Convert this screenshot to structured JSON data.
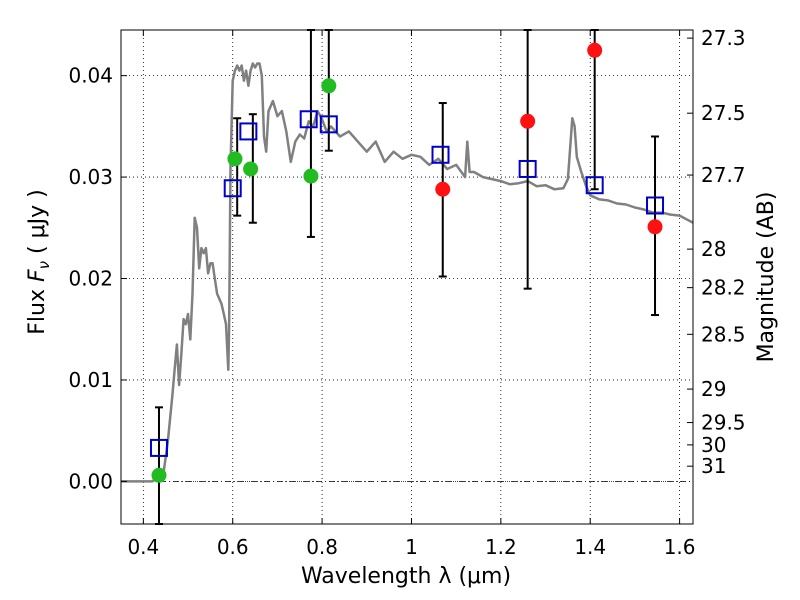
{
  "chart_data": {
    "type": "scatter",
    "title": "",
    "xlabel": "Wavelength  λ (μm)",
    "ylabel_prefix": "Flux  ",
    "ylabel_var": "F",
    "ylabel_sub": "ν",
    "ylabel_suffix": "  ( μJy )",
    "y2label": "Magnitude (AB)",
    "xlim": [
      0.35,
      1.63
    ],
    "ylim": [
      -0.0042,
      0.0445
    ],
    "grid": true,
    "x_ticks": [
      0.4,
      0.6,
      0.8,
      1.0,
      1.2,
      1.4,
      1.6
    ],
    "x_tick_labels": [
      "0.4",
      "0.6",
      "0.8",
      "1",
      "1.2",
      "1.4",
      "1.6"
    ],
    "y_ticks": [
      0.0,
      0.01,
      0.02,
      0.03,
      0.04
    ],
    "y_tick_labels": [
      "0.00",
      "0.01",
      "0.02",
      "0.03",
      "0.04"
    ],
    "y2_ticks": [
      {
        "flux": 0.0437,
        "label": "27.3"
      },
      {
        "flux": 0.0363,
        "label": "27.5"
      },
      {
        "flux": 0.0302,
        "label": "27.7"
      },
      {
        "flux": 0.0229,
        "label": "28"
      },
      {
        "flux": 0.0191,
        "label": "28.2"
      },
      {
        "flux": 0.0145,
        "label": "28.5"
      },
      {
        "flux": 0.0091,
        "label": "29"
      },
      {
        "flux": 0.0058,
        "label": "29.5"
      },
      {
        "flux": 0.0036,
        "label": "30"
      },
      {
        "flux": 0.0015,
        "label": "31"
      }
    ],
    "sed_model": {
      "name": "SED model",
      "color": "#808080",
      "x": [
        0.35,
        0.42,
        0.445,
        0.455,
        0.465,
        0.47,
        0.475,
        0.48,
        0.485,
        0.49,
        0.495,
        0.5,
        0.505,
        0.51,
        0.515,
        0.52,
        0.525,
        0.53,
        0.535,
        0.54,
        0.545,
        0.55,
        0.555,
        0.56,
        0.565,
        0.57,
        0.575,
        0.58,
        0.585,
        0.59,
        0.592,
        0.595,
        0.6,
        0.605,
        0.61,
        0.615,
        0.62,
        0.625,
        0.63,
        0.635,
        0.64,
        0.645,
        0.65,
        0.655,
        0.66,
        0.665,
        0.67,
        0.675,
        0.68,
        0.685,
        0.69,
        0.7,
        0.71,
        0.72,
        0.73,
        0.74,
        0.75,
        0.76,
        0.77,
        0.78,
        0.79,
        0.8,
        0.81,
        0.82,
        0.84,
        0.86,
        0.88,
        0.9,
        0.92,
        0.94,
        0.96,
        0.98,
        1.0,
        1.02,
        1.04,
        1.06,
        1.08,
        1.1,
        1.12,
        1.125,
        1.13,
        1.14,
        1.16,
        1.18,
        1.2,
        1.22,
        1.24,
        1.26,
        1.28,
        1.3,
        1.32,
        1.34,
        1.35,
        1.36,
        1.365,
        1.37,
        1.38,
        1.39,
        1.4,
        1.42,
        1.44,
        1.46,
        1.48,
        1.5,
        1.52,
        1.54,
        1.56,
        1.58,
        1.6,
        1.63
      ],
      "y": [
        0.0,
        0.0,
        0.0008,
        0.004,
        0.0085,
        0.011,
        0.0135,
        0.0095,
        0.0125,
        0.016,
        0.0155,
        0.0165,
        0.014,
        0.0185,
        0.026,
        0.025,
        0.021,
        0.023,
        0.0225,
        0.023,
        0.0205,
        0.0215,
        0.0215,
        0.02,
        0.0185,
        0.018,
        0.0175,
        0.0165,
        0.0155,
        0.011,
        0.015,
        0.031,
        0.0395,
        0.0405,
        0.041,
        0.0405,
        0.041,
        0.0395,
        0.0405,
        0.039,
        0.0405,
        0.0412,
        0.0408,
        0.0412,
        0.0412,
        0.04,
        0.034,
        0.0325,
        0.0365,
        0.037,
        0.0375,
        0.036,
        0.0365,
        0.0345,
        0.0315,
        0.0335,
        0.0342,
        0.0338,
        0.0355,
        0.035,
        0.0365,
        0.0357,
        0.0345,
        0.035,
        0.034,
        0.0345,
        0.0335,
        0.0325,
        0.0335,
        0.0315,
        0.0325,
        0.0318,
        0.0322,
        0.032,
        0.0312,
        0.0318,
        0.0308,
        0.0312,
        0.03,
        0.0335,
        0.0305,
        0.0305,
        0.03,
        0.0298,
        0.0296,
        0.0293,
        0.0294,
        0.0296,
        0.0291,
        0.0292,
        0.0288,
        0.0289,
        0.0298,
        0.0358,
        0.035,
        0.032,
        0.0305,
        0.0292,
        0.0282,
        0.0278,
        0.0277,
        0.0274,
        0.0273,
        0.027,
        0.0268,
        0.0265,
        0.0265,
        0.0263,
        0.0262,
        0.0255
      ]
    },
    "series": [
      {
        "name": "observed (green)",
        "marker": "circle",
        "color": "#22bb22",
        "x": [
          0.435,
          0.605,
          0.64,
          0.775,
          0.815
        ],
        "y": [
          0.0006,
          0.0318,
          0.0308,
          0.0301,
          0.039
        ]
      },
      {
        "name": "observed (red)",
        "marker": "circle",
        "color": "#ff1111",
        "x": [
          1.07,
          1.26,
          1.41,
          1.545
        ],
        "y": [
          0.0288,
          0.0355,
          0.0425,
          0.0251
        ]
      },
      {
        "name": "model photometry",
        "marker": "square-open",
        "color": "#0000cc",
        "x": [
          0.435,
          0.6,
          0.635,
          0.77,
          0.815,
          1.065,
          1.26,
          1.41,
          1.545
        ],
        "y": [
          0.0033,
          0.0289,
          0.0345,
          0.0357,
          0.0352,
          0.0322,
          0.0308,
          0.0292,
          0.0272
        ]
      }
    ],
    "error_bars": [
      {
        "x": 0.435,
        "low": -0.0042,
        "high": 0.0073
      },
      {
        "x": 0.61,
        "low": 0.0262,
        "high": 0.0358
      },
      {
        "x": 0.645,
        "low": 0.0255,
        "high": 0.0362
      },
      {
        "x": 0.775,
        "low": 0.0241,
        "high": 0.0445
      },
      {
        "x": 0.815,
        "low": 0.0326,
        "high": 0.0445
      },
      {
        "x": 1.07,
        "low": 0.0202,
        "high": 0.0373
      },
      {
        "x": 1.26,
        "low": 0.019,
        "high": 0.0445
      },
      {
        "x": 1.41,
        "low": 0.0288,
        "high": 0.0445
      },
      {
        "x": 1.545,
        "low": 0.0164,
        "high": 0.034
      }
    ],
    "zero_line": {
      "y": 0.0,
      "style": "dash-dot"
    }
  }
}
